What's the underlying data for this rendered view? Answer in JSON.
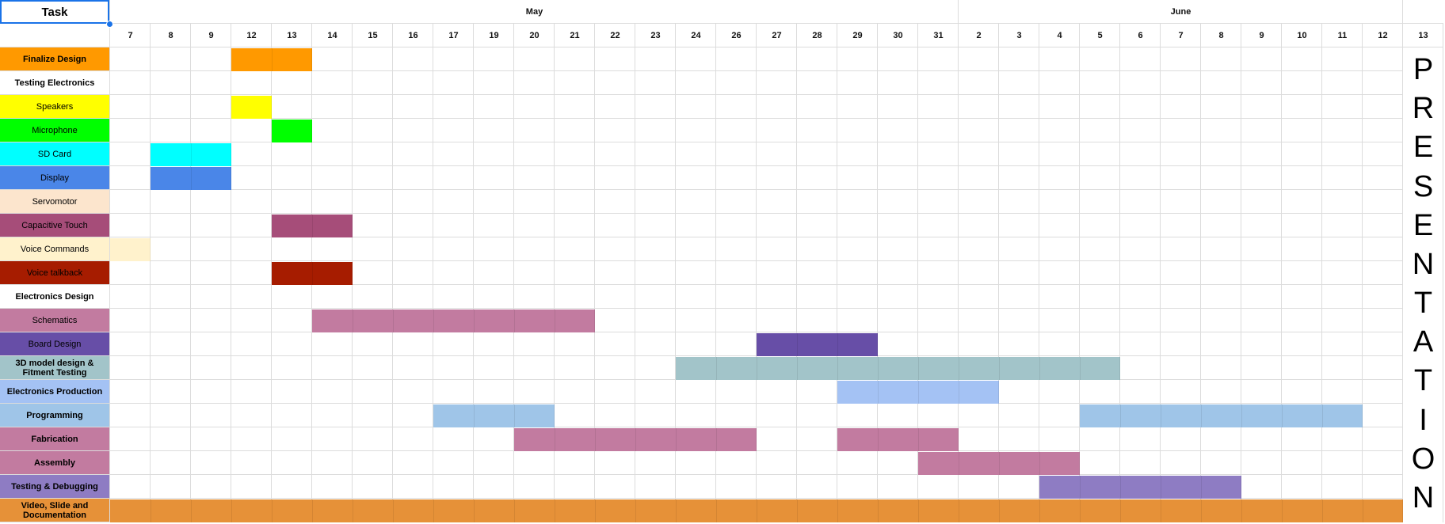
{
  "header": {
    "task_label": "Task",
    "months": [
      {
        "name": "May",
        "start": 0,
        "span": 21
      },
      {
        "name": "June",
        "start": 21,
        "span": 11
      }
    ]
  },
  "days": [
    "7",
    "8",
    "9",
    "12",
    "13",
    "14",
    "15",
    "16",
    "17",
    "19",
    "20",
    "21",
    "22",
    "23",
    "24",
    "26",
    "27",
    "28",
    "29",
    "30",
    "31",
    "2",
    "3",
    "4",
    "5",
    "6",
    "7",
    "8",
    "9",
    "10",
    "11",
    "12",
    "13"
  ],
  "tasks": [
    {
      "label": "Finalize Design",
      "color": "#ff9900",
      "bold": true,
      "bars": [
        [
          3,
          4
        ]
      ]
    },
    {
      "label": "Testing Electronics",
      "color": "#ffffff",
      "bold": true,
      "bars": []
    },
    {
      "label": "Speakers",
      "color": "#ffff00",
      "bold": false,
      "bars": [
        [
          3,
          3
        ]
      ]
    },
    {
      "label": "Microphone",
      "color": "#00ff00",
      "bold": false,
      "bars": [
        [
          4,
          4
        ]
      ]
    },
    {
      "label": "SD Card",
      "color": "#00ffff",
      "bold": false,
      "bars": [
        [
          1,
          2
        ]
      ]
    },
    {
      "label": "Display",
      "color": "#4a86e8",
      "bold": false,
      "bars": [
        [
          1,
          2
        ]
      ]
    },
    {
      "label": "Servomotor",
      "color": "#fce5cd",
      "bold": false,
      "bars": []
    },
    {
      "label": "Capacitive Touch",
      "color": "#a64d79",
      "bold": false,
      "bars": [
        [
          4,
          5
        ]
      ]
    },
    {
      "label": "Voice Commands",
      "color": "#fff2cc",
      "bold": false,
      "bars": [
        [
          0,
          0
        ]
      ]
    },
    {
      "label": "Voice talkback",
      "color": "#a61c00",
      "bold": false,
      "bars": [
        [
          4,
          5
        ]
      ]
    },
    {
      "label": "Electronics Design",
      "color": "#ffffff",
      "bold": true,
      "bars": []
    },
    {
      "label": "Schematics",
      "color": "#c27ba0",
      "bold": false,
      "bars": [
        [
          5,
          11
        ]
      ]
    },
    {
      "label": "Board Design",
      "color": "#674ea7",
      "bold": false,
      "bars": [
        [
          16,
          18
        ]
      ]
    },
    {
      "label": "3D model design & Fitment Testing",
      "color": "#a2c4c9",
      "bold": true,
      "bars": [
        [
          14,
          24
        ]
      ]
    },
    {
      "label": "Electronics Production",
      "color": "#a4c2f4",
      "bold": true,
      "bars": [
        [
          18,
          21
        ]
      ]
    },
    {
      "label": "Programming",
      "color": "#9fc5e8",
      "bold": true,
      "bars": [
        [
          8,
          10
        ],
        [
          24,
          30
        ]
      ]
    },
    {
      "label": "Fabrication",
      "color": "#c27ba0",
      "bold": true,
      "bars": [
        [
          10,
          15
        ],
        [
          18,
          20
        ]
      ]
    },
    {
      "label": "Assembly",
      "color": "#c27ba0",
      "bold": true,
      "bars": [
        [
          20,
          23
        ]
      ]
    },
    {
      "label": "Testing & Debugging",
      "color": "#8e7cc3",
      "bold": true,
      "bars": [
        [
          23,
          27
        ]
      ]
    },
    {
      "label": "Video, Slide and Documentation",
      "color": "#e69138",
      "bold": true,
      "bars": [
        [
          0,
          31
        ]
      ]
    }
  ],
  "presentation": {
    "letters": [
      "P",
      "R",
      "E",
      "S",
      "E",
      "N",
      "T",
      "A",
      "T",
      "I",
      "O",
      "N"
    ]
  }
}
